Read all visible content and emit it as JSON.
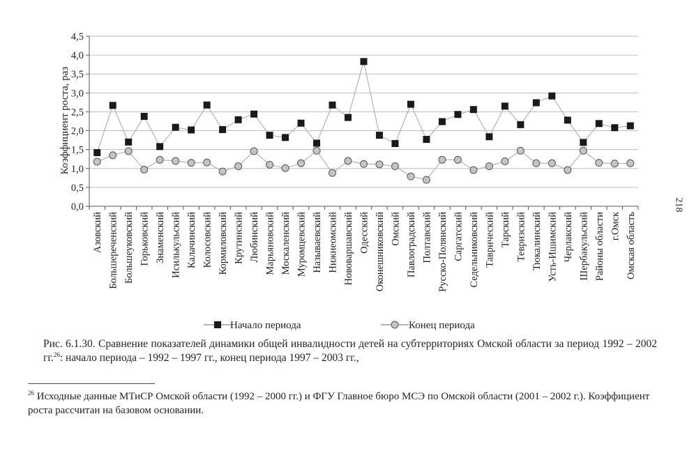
{
  "page": {
    "number": "218"
  },
  "chart_data": {
    "type": "line",
    "ylabel": "Коэффициент роста, раз",
    "xlabel": "",
    "ylim": [
      0,
      4.5
    ],
    "yticks": [
      "0,0",
      "0,5",
      "1,0",
      "1,5",
      "2,0",
      "2,5",
      "3,0",
      "3,5",
      "4,0",
      "4,5"
    ],
    "grid": true,
    "legend_position": "bottom",
    "categories": [
      "Азовский",
      "Большереченский",
      "Большеуковский",
      "Горьковский",
      "Знаменский",
      "Исилькульский",
      "Калачинский",
      "Колосовский",
      "Кормиловский",
      "Крутинский",
      "Любинский",
      "Марьяновский",
      "Москаленский",
      "Муромцевский",
      "Называевский",
      "Нижнеомский",
      "Нововаршавский",
      "Одесский",
      "Оконешниковский",
      "Омский",
      "Павлоградский",
      "Полтавский",
      "Русско-Полянский",
      "Саргатский",
      "Седельниковский",
      "Таврический",
      "Тарский",
      "Тевризский",
      "Тюкалинский",
      "Усть-Ишимский",
      "Черлакский",
      "Шербакульский",
      "Районы области",
      "г.Омск",
      "Омская область"
    ],
    "series": [
      {
        "name": "Начало периода",
        "marker": "square",
        "color": "#1a1a1a",
        "values": [
          1.42,
          2.67,
          1.7,
          2.38,
          1.58,
          2.09,
          2.02,
          2.68,
          2.03,
          2.29,
          2.44,
          1.88,
          1.82,
          2.2,
          1.67,
          2.68,
          2.35,
          3.83,
          1.88,
          1.66,
          2.7,
          1.77,
          2.24,
          2.43,
          2.56,
          1.84,
          2.65,
          2.16,
          2.74,
          2.92,
          2.28,
          1.69,
          2.19,
          2.08,
          2.13
        ]
      },
      {
        "name": "Конец периода",
        "marker": "circle",
        "color": "#9a9a9a",
        "values": [
          1.18,
          1.35,
          1.46,
          0.97,
          1.23,
          1.2,
          1.15,
          1.16,
          0.92,
          1.06,
          1.46,
          1.1,
          1.01,
          1.14,
          1.47,
          0.88,
          1.2,
          1.12,
          1.11,
          1.06,
          0.79,
          0.7,
          1.23,
          1.23,
          0.96,
          1.06,
          1.19,
          1.47,
          1.14,
          1.14,
          0.96,
          1.47,
          1.15,
          1.13,
          1.14
        ]
      }
    ]
  },
  "caption": {
    "main": "Рис. 6.1.30. Сравнение показателей динамики общей инвалидности детей на субтерриториях Омской области за период 1992 – 2002 гг.",
    "ref": "26",
    "rest": ": начало периода – 1992 – 1997 гг., конец периода 1997 – 2003 гг.,"
  },
  "footnote": {
    "number": "26",
    "text": " Исходные данные МТиСР Омской области (1992 – 2000 гг.) и ФГУ Главное бюро МСЭ по Омской области (2001 – 2002 г.). Коэффициент роста рассчитан на базовом основании."
  }
}
